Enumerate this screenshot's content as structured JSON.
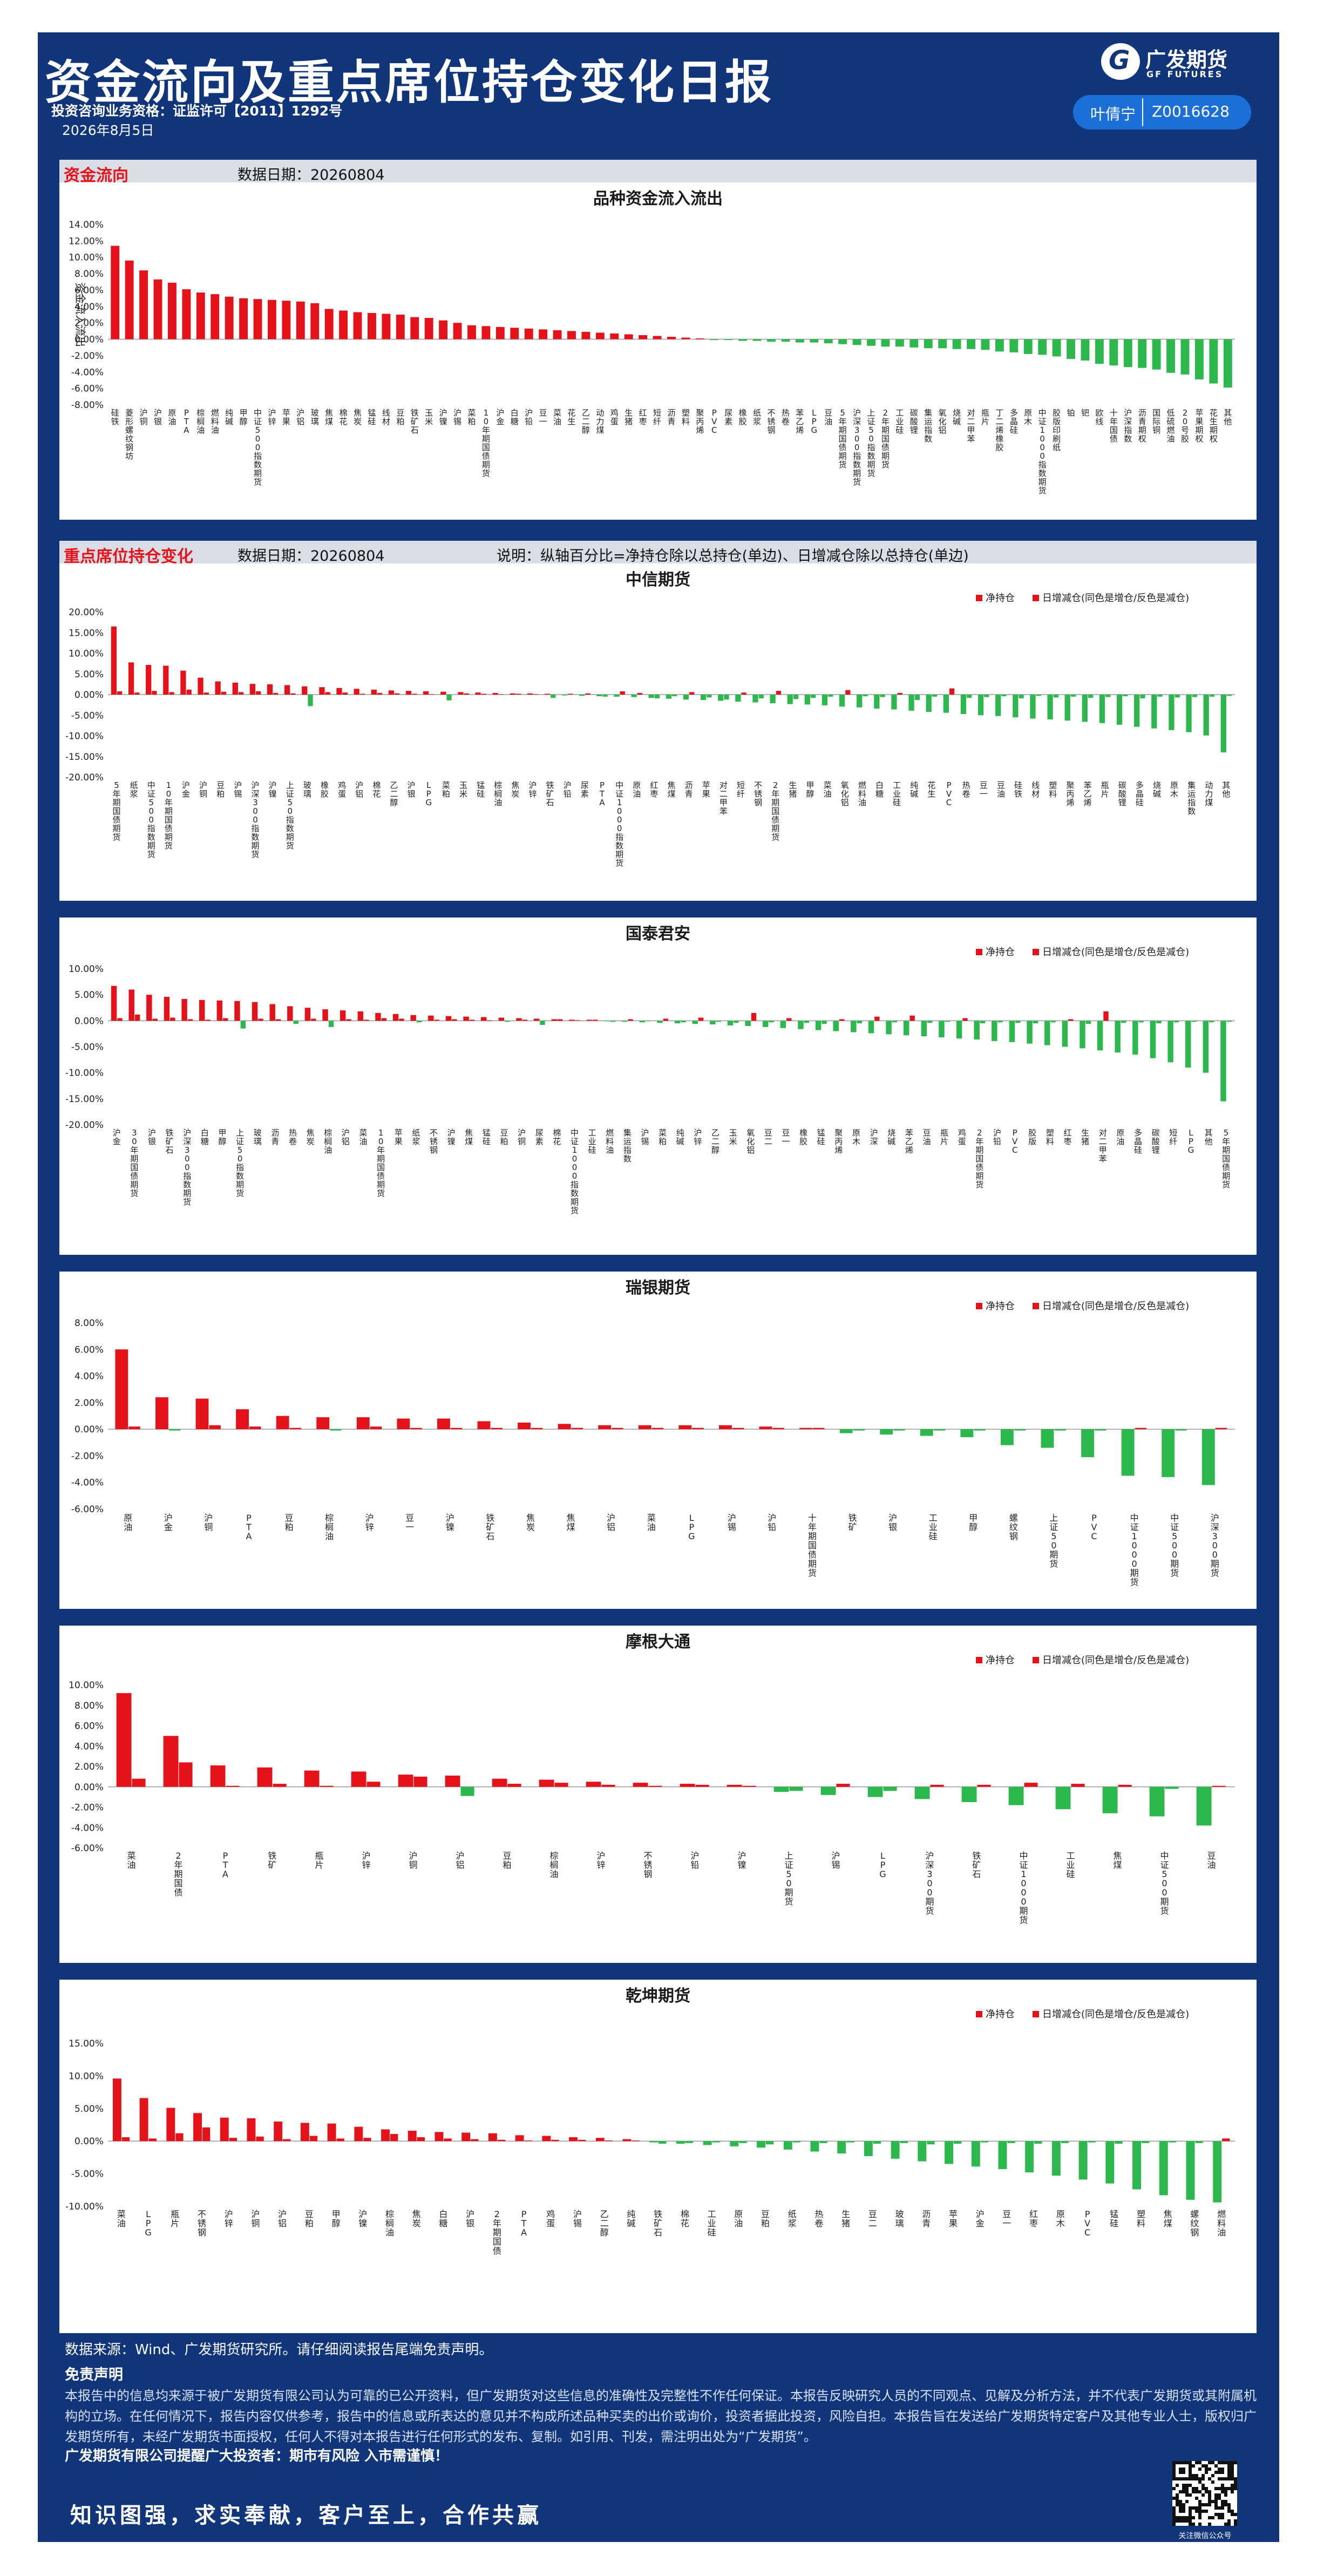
{
  "header": {
    "title": "资金流向及重点席位持仓变化日报",
    "license": "投资咨询业务资格：证监许可【2011】1292号",
    "date": "2026年8月5日",
    "logo_cn": "广发期货",
    "logo_en": "GF FUTURES",
    "analyst_name": "叶倩宁",
    "analyst_id": "Z0016628"
  },
  "colors": {
    "frame": "#10357a",
    "positive": "#e6121a",
    "negative": "#2db84d",
    "section_bg": "#d8dde6"
  },
  "sections": {
    "fund_flow": {
      "label": "资金流向",
      "date_label": "数据日期：",
      "date": "20260804"
    },
    "positions": {
      "label": "重点席位持仓变化",
      "date_label": "数据日期：",
      "date": "20260804",
      "note": "说明：纵轴百分比=净持仓除以总持仓(单边)、日增减仓除以总持仓(单边)"
    }
  },
  "chart_data": [
    {
      "id": "flow",
      "type": "bar",
      "title": "品种资金流入流出",
      "ylabel": "资金流入流出",
      "ylim": [
        -8,
        14
      ],
      "yticks": [
        -8,
        -6,
        -4,
        -2,
        0,
        2,
        4,
        6,
        8,
        10,
        12,
        14
      ],
      "grid": false,
      "categories": [
        "硅铁",
        "菱形螺纹钢坊",
        "沪铜",
        "沪银",
        "原油",
        "PTA",
        "棕榈油",
        "燃料油",
        "纯碱",
        "甲醇",
        "中证500指数期货",
        "沪锌",
        "苹果",
        "沪铝",
        "玻璃",
        "焦煤",
        "棉花",
        "焦炭",
        "锰硅",
        "线材",
        "豆粕",
        "铁矿石",
        "玉米",
        "沪镍",
        "沪锡",
        "菜粕",
        "10年期国债期货",
        "沪金",
        "白糖",
        "沪铅",
        "豆一",
        "菜油",
        "花生",
        "乙二醇",
        "动力煤",
        "鸡蛋",
        "生猪",
        "红枣",
        "短纤",
        "沥青",
        "塑料",
        "聚丙烯",
        "PVC",
        "尿素",
        "橡胶",
        "纸浆",
        "不锈钢",
        "热卷",
        "苯乙烯",
        "LPG",
        "豆油",
        "5年期国债期货",
        "沪深300指数期货",
        "上证50指数期货",
        "2年期国债期货",
        "工业硅",
        "碳酸锂",
        "集运指数",
        "氧化铝",
        "烧碱",
        "对二甲苯",
        "瓶片",
        "丁二烯橡胶",
        "多晶硅",
        "原木",
        "中证1000指数期货",
        "胶版印刷纸",
        "铂",
        "钯",
        "欧线",
        "十年国债",
        "沪深指数",
        "沥青期权",
        "国际铜",
        "低硫燃油",
        "20号胶",
        "苹果期权",
        "花生期权",
        "其他"
      ],
      "values": [
        11.4,
        9.6,
        8.4,
        7.3,
        6.9,
        6.1,
        5.7,
        5.5,
        5.2,
        5.0,
        4.9,
        4.8,
        4.7,
        4.6,
        4.4,
        3.7,
        3.5,
        3.3,
        3.2,
        3.1,
        3.0,
        2.7,
        2.6,
        2.3,
        2.0,
        1.7,
        1.6,
        1.5,
        1.4,
        1.3,
        1.2,
        1.1,
        1.0,
        0.9,
        0.8,
        0.7,
        0.6,
        0.5,
        0.4,
        0.3,
        0.2,
        0.1,
        -0.1,
        -0.1,
        -0.2,
        -0.2,
        -0.3,
        -0.3,
        -0.4,
        -0.4,
        -0.5,
        -0.6,
        -0.7,
        -0.8,
        -0.9,
        -0.9,
        -1.0,
        -1.1,
        -1.1,
        -1.2,
        -1.2,
        -1.3,
        -1.5,
        -1.6,
        -1.8,
        -1.9,
        -2.1,
        -2.4,
        -2.6,
        -3.0,
        -3.2,
        -3.4,
        -3.5,
        -3.7,
        -4.1,
        -4.3,
        -4.9,
        -5.4,
        -5.9
      ]
    },
    {
      "id": "citic",
      "type": "bar",
      "title": "中信期货",
      "legend": [
        "净持仓",
        "日增减仓(同色是增仓/反色是减仓)"
      ],
      "ylim": [
        -20,
        20
      ],
      "yticks": [
        -20,
        -15,
        -10,
        -5,
        0,
        5,
        10,
        15,
        20
      ],
      "categories": [
        "5年期国债期货",
        "纸浆",
        "中证500指数期货",
        "10年期国债期货",
        "沪金",
        "沪铜",
        "豆粕",
        "沪锡",
        "沪深300指数期货",
        "沪镍",
        "上证50指数期货",
        "玻璃",
        "橡胶",
        "鸡蛋",
        "沪铝",
        "棉花",
        "乙二醇",
        "沪银",
        "LPG",
        "菜粕",
        "玉米",
        "锰硅",
        "棕榈油",
        "焦炭",
        "沪锌",
        "铁矿石",
        "沪铅",
        "尿素",
        "PTA",
        "中证1000指数期货",
        "原油",
        "红枣",
        "焦煤",
        "沥青",
        "苹果",
        "对二甲苯",
        "短纤",
        "不锈钢",
        "2年期国债期货",
        "生猪",
        "甲醇",
        "菜油",
        "氧化铝",
        "燃料油",
        "白糖",
        "工业硅",
        "纯碱",
        "花生",
        "PVC",
        "热卷",
        "豆一",
        "豆油",
        "硅铁",
        "线材",
        "塑料",
        "聚丙烯",
        "苯乙烯",
        "瓶片",
        "碳酸锂",
        "多晶硅",
        "烧碱",
        "原木",
        "集运指数",
        "动力煤",
        "其他"
      ],
      "net": [
        16.5,
        7.8,
        7.2,
        7.0,
        5.8,
        4.1,
        3.2,
        2.9,
        2.6,
        2.5,
        2.3,
        2.0,
        1.8,
        1.6,
        1.4,
        1.2,
        1.0,
        0.9,
        0.8,
        0.7,
        0.6,
        0.5,
        0.4,
        0.3,
        0.3,
        0.2,
        -0.2,
        -0.3,
        -0.4,
        -0.5,
        -0.6,
        -0.8,
        -1.0,
        -1.2,
        -1.3,
        -1.5,
        -1.7,
        -1.9,
        -2.1,
        -2.3,
        -2.4,
        -2.6,
        -2.9,
        -3.1,
        -3.4,
        -3.6,
        -3.9,
        -4.2,
        -4.4,
        -4.7,
        -5.0,
        -5.2,
        -5.5,
        -5.8,
        -6.0,
        -6.3,
        -6.6,
        -6.9,
        -7.3,
        -7.8,
        -8.2,
        -8.6,
        -9.1,
        -9.9,
        -14.0
      ],
      "change": [
        0.8,
        0.5,
        0.9,
        0.6,
        1.2,
        0.5,
        0.7,
        0.6,
        0.8,
        0.4,
        0.3,
        -2.8,
        0.6,
        0.5,
        0.2,
        0.4,
        0.3,
        0.2,
        0.1,
        -1.4,
        0.3,
        0.2,
        0.1,
        0.2,
        0.1,
        -0.8,
        0.2,
        0.3,
        -0.5,
        0.8,
        0.4,
        -0.9,
        -0.4,
        0.6,
        -0.7,
        -1.2,
        0.5,
        -0.9,
        0.9,
        -1.1,
        -0.8,
        -0.5,
        1.1,
        -0.4,
        -0.6,
        0.4,
        -1.3,
        -0.5,
        1.5,
        -0.8,
        -0.6,
        -0.4,
        -0.9,
        -0.3,
        -0.7,
        -0.5,
        -0.8,
        -0.6,
        -0.4,
        -0.9,
        -0.5,
        -0.7,
        -0.6,
        -0.5,
        -0.3
      ]
    },
    {
      "id": "guotai",
      "type": "bar",
      "title": "国泰君安",
      "legend": [
        "净持仓",
        "日增减仓(同色是增仓/反色是减仓)"
      ],
      "ylim": [
        -20,
        10
      ],
      "yticks": [
        -20,
        -15,
        -10,
        -5,
        0,
        5,
        10
      ],
      "categories": [
        "沪金",
        "30年期国债期货",
        "沪银",
        "铁矿石",
        "沪深300指数期货",
        "白糖",
        "甲醇",
        "上证50指数期货",
        "玻璃",
        "沥青",
        "热卷",
        "焦炭",
        "棕榈油",
        "沪铝",
        "菜油",
        "10年期国债期货",
        "苹果",
        "纸浆",
        "不锈钢",
        "沪镍",
        "焦煤",
        "锰硅",
        "豆粕",
        "沪铜",
        "尿素",
        "棉花",
        "中证1000指数期货",
        "工业硅",
        "燃料油",
        "集运指数",
        "沪锡",
        "菜粕",
        "纯碱",
        "沪锌",
        "乙二醇",
        "玉米",
        "氧化铝",
        "豆二",
        "豆一",
        "橡胶",
        "锰硅",
        "聚丙烯",
        "原木",
        "沪深",
        "烧碱",
        "苯乙烯",
        "豆油",
        "瓶片",
        "鸡蛋",
        "2年期国债期货",
        "沪铅",
        "PVC",
        "胶版",
        "塑料",
        "红枣",
        "生猪",
        "对二甲苯",
        "原油",
        "多晶硅",
        "碳酸锂",
        "短纤",
        "LPG",
        "其他",
        "5年期国债期货"
      ],
      "net": [
        6.7,
        6.0,
        5.0,
        4.6,
        4.2,
        4.0,
        3.9,
        3.8,
        3.6,
        3.2,
        2.8,
        2.5,
        2.2,
        2.0,
        1.8,
        1.5,
        1.3,
        1.1,
        1.0,
        0.9,
        0.8,
        0.7,
        0.6,
        0.5,
        0.4,
        0.3,
        0.2,
        0.2,
        -0.1,
        -0.2,
        -0.3,
        -0.4,
        -0.5,
        -0.6,
        -0.7,
        -0.9,
        -1.0,
        -1.2,
        -1.4,
        -1.6,
        -1.8,
        -2.0,
        -2.2,
        -2.4,
        -2.6,
        -2.8,
        -3.0,
        -3.2,
        -3.4,
        -3.6,
        -3.9,
        -4.1,
        -4.4,
        -4.7,
        -5.0,
        -5.3,
        -5.7,
        -6.1,
        -6.5,
        -7.2,
        -8.0,
        -9.0,
        -10.0,
        -15.5
      ],
      "change": [
        0.5,
        1.2,
        0.4,
        0.6,
        0.3,
        0.2,
        0.5,
        -1.5,
        0.4,
        0.3,
        -0.6,
        0.4,
        -1.2,
        0.3,
        0.2,
        0.5,
        0.4,
        -0.3,
        0.2,
        0.3,
        0.2,
        0.1,
        -0.2,
        0.2,
        -0.8,
        0.3,
        0.1,
        0.2,
        -0.2,
        0.3,
        -0.1,
        0.4,
        -0.3,
        0.6,
        -0.2,
        -0.4,
        1.5,
        -0.3,
        0.5,
        -0.4,
        -0.6,
        0.3,
        -0.5,
        0.8,
        -0.3,
        1.0,
        -0.4,
        -0.2,
        0.5,
        -0.5,
        -0.3,
        -0.4,
        -0.5,
        -0.3,
        0.3,
        -0.6,
        1.8,
        -0.4,
        -0.3,
        -0.5,
        -0.3,
        -0.2,
        -0.3,
        -0.2
      ]
    },
    {
      "id": "ubs",
      "type": "bar",
      "title": "瑞银期货",
      "legend": [
        "净持仓",
        "日增减仓(同色是增仓/反色是减仓)"
      ],
      "ylim": [
        -6,
        8
      ],
      "yticks": [
        -6,
        -4,
        -2,
        0,
        2,
        4,
        6,
        8
      ],
      "categories": [
        "原油",
        "沪金",
        "沪铜",
        "PTA",
        "豆粕",
        "棕榈油",
        "沪锌",
        "豆一",
        "沪镍",
        "铁矿石",
        "焦炭",
        "焦煤",
        "沪铝",
        "菜油",
        "LPG",
        "沪锡",
        "沪铅",
        "十年期国债期货",
        "铁矿",
        "沪银",
        "工业硅",
        "甲醇",
        "螺纹钢",
        "上证50期货",
        "PVC",
        "中证1000期货",
        "中证500期货",
        "沪深300期货"
      ],
      "net": [
        6.0,
        2.4,
        2.3,
        1.5,
        1.0,
        0.9,
        0.9,
        0.8,
        0.8,
        0.6,
        0.5,
        0.4,
        0.3,
        0.3,
        0.3,
        0.3,
        0.2,
        0.1,
        -0.3,
        -0.4,
        -0.5,
        -0.6,
        -1.2,
        -1.4,
        -2.1,
        -3.5,
        -3.6,
        -4.2
      ],
      "change": [
        0.2,
        -0.1,
        0.3,
        0.2,
        0.1,
        -0.1,
        0.2,
        0.1,
        0.1,
        0.1,
        0.1,
        0.1,
        0.1,
        0.1,
        0.1,
        0.1,
        0.1,
        0.1,
        -0.1,
        -0.1,
        -0.1,
        -0.1,
        -0.1,
        -0.1,
        -0.1,
        0.1,
        -0.1,
        0.1
      ]
    },
    {
      "id": "jpm",
      "type": "bar",
      "title": "摩根大通",
      "legend": [
        "净持仓",
        "日增减仓(同色是增仓/反色是减仓)"
      ],
      "ylim": [
        -6,
        10
      ],
      "yticks": [
        -6,
        -4,
        -2,
        0,
        2,
        4,
        6,
        8,
        10
      ],
      "categories": [
        "菜油",
        "2年期国债",
        "PTA",
        "铁矿",
        "瓶片",
        "沪锌",
        "沪铜",
        "沪铝",
        "豆粕",
        "棕榈油",
        "沪锌",
        "不锈钢",
        "沪铅",
        "沪镍",
        "上证50期货",
        "沪锡",
        "LPG",
        "沪深300期货",
        "铁矿石",
        "中证1000期货",
        "工业硅",
        "焦煤",
        "中证500期货",
        "豆油"
      ],
      "net": [
        9.2,
        5.0,
        2.1,
        1.9,
        1.6,
        1.5,
        1.2,
        1.1,
        0.8,
        0.7,
        0.5,
        0.4,
        0.3,
        0.2,
        -0.5,
        -0.8,
        -1.0,
        -1.2,
        -1.5,
        -1.8,
        -2.2,
        -2.6,
        -2.9,
        -3.8
      ],
      "change": [
        0.8,
        2.4,
        0.1,
        0.3,
        0.1,
        0.5,
        1.0,
        -0.9,
        0.3,
        0.4,
        0.2,
        0.1,
        0.2,
        0.1,
        -0.4,
        0.3,
        -0.4,
        0.2,
        0.2,
        0.4,
        0.3,
        0.2,
        -0.2,
        0.1
      ]
    },
    {
      "id": "qiankun",
      "type": "bar",
      "title": "乾坤期货",
      "legend": [
        "净持仓",
        "日增减仓(同色是增仓/反色是减仓)"
      ],
      "ylim": [
        -10,
        15
      ],
      "yticks": [
        -10,
        -5,
        0,
        5,
        10,
        15
      ],
      "categories": [
        "菜油",
        "LPG",
        "瓶片",
        "不锈钢",
        "沪锌",
        "沪铜",
        "沪铝",
        "豆粕",
        "甲醇",
        "沪镍",
        "棕榈油",
        "焦炭",
        "白糖",
        "沪银",
        "2年期国债",
        "PTA",
        "鸡蛋",
        "沪锡",
        "乙二醇",
        "纯碱",
        "铁矿石",
        "棉花",
        "工业硅",
        "原油",
        "豆粕",
        "纸浆",
        "热卷",
        "生猪",
        "豆二",
        "玻璃",
        "沥青",
        "苹果",
        "沪金",
        "豆一",
        "红枣",
        "原木",
        "PVC",
        "锰硅",
        "塑料",
        "焦煤",
        "螺纹钢",
        "燃料油"
      ],
      "net": [
        9.6,
        6.6,
        5.1,
        4.3,
        3.6,
        3.5,
        3.0,
        2.8,
        2.7,
        2.2,
        1.8,
        1.6,
        1.4,
        1.3,
        1.2,
        0.9,
        0.8,
        0.6,
        0.5,
        0.3,
        -0.2,
        -0.4,
        -0.6,
        -0.8,
        -1.0,
        -1.3,
        -1.6,
        -1.9,
        -2.3,
        -2.7,
        -3.1,
        -3.5,
        -3.9,
        -4.3,
        -4.8,
        -5.3,
        -5.9,
        -6.5,
        -7.4,
        -8.3,
        -9.0,
        -9.4
      ],
      "change": [
        0.6,
        0.4,
        1.2,
        2.1,
        0.5,
        0.7,
        0.3,
        0.8,
        0.4,
        0.5,
        1.1,
        0.6,
        0.4,
        0.3,
        0.2,
        0.1,
        0.2,
        0.2,
        0.1,
        0.1,
        -0.4,
        -0.3,
        -0.2,
        -0.3,
        -0.5,
        -0.2,
        -0.3,
        -0.2,
        -0.4,
        -0.3,
        -0.5,
        -0.4,
        -0.2,
        -0.3,
        -0.4,
        -0.3,
        -0.2,
        -0.4,
        -0.3,
        -0.2,
        -0.3,
        0.4
      ]
    }
  ],
  "footer": {
    "source": "数据来源：Wind、广发期货研究所。请仔细阅读报告尾端免责声明。",
    "disclaimer_title": "免责声明",
    "disclaimer": "本报告中的信息均来源于被广发期货有限公司认为可靠的已公开资料，但广发期货对这些信息的准确性及完整性不作任何保证。本报告反映研究人员的不同观点、见解及分析方法，并不代表广发期货或其附属机构的立场。在任何情况下，报告内容仅供参考，报告中的信息或所表达的意见并不构成所述品种买卖的出价或询价，投资者据此投资，风险自担。本报告旨在发送给广发期货特定客户及其他专业人士，版权归广发期货所有，未经广发期货书面授权，任何人不得对本报告进行任何形式的发布、复制。如引用、刊发，需注明出处为“广发期货”。",
    "contact": "广发期货有限公司提醒广大投资者：期市有风险 入市需谨慎！",
    "slogan": "知识图强，求实奉献，客户至上，合作共赢",
    "qr_caption": "关注微信公众号"
  }
}
